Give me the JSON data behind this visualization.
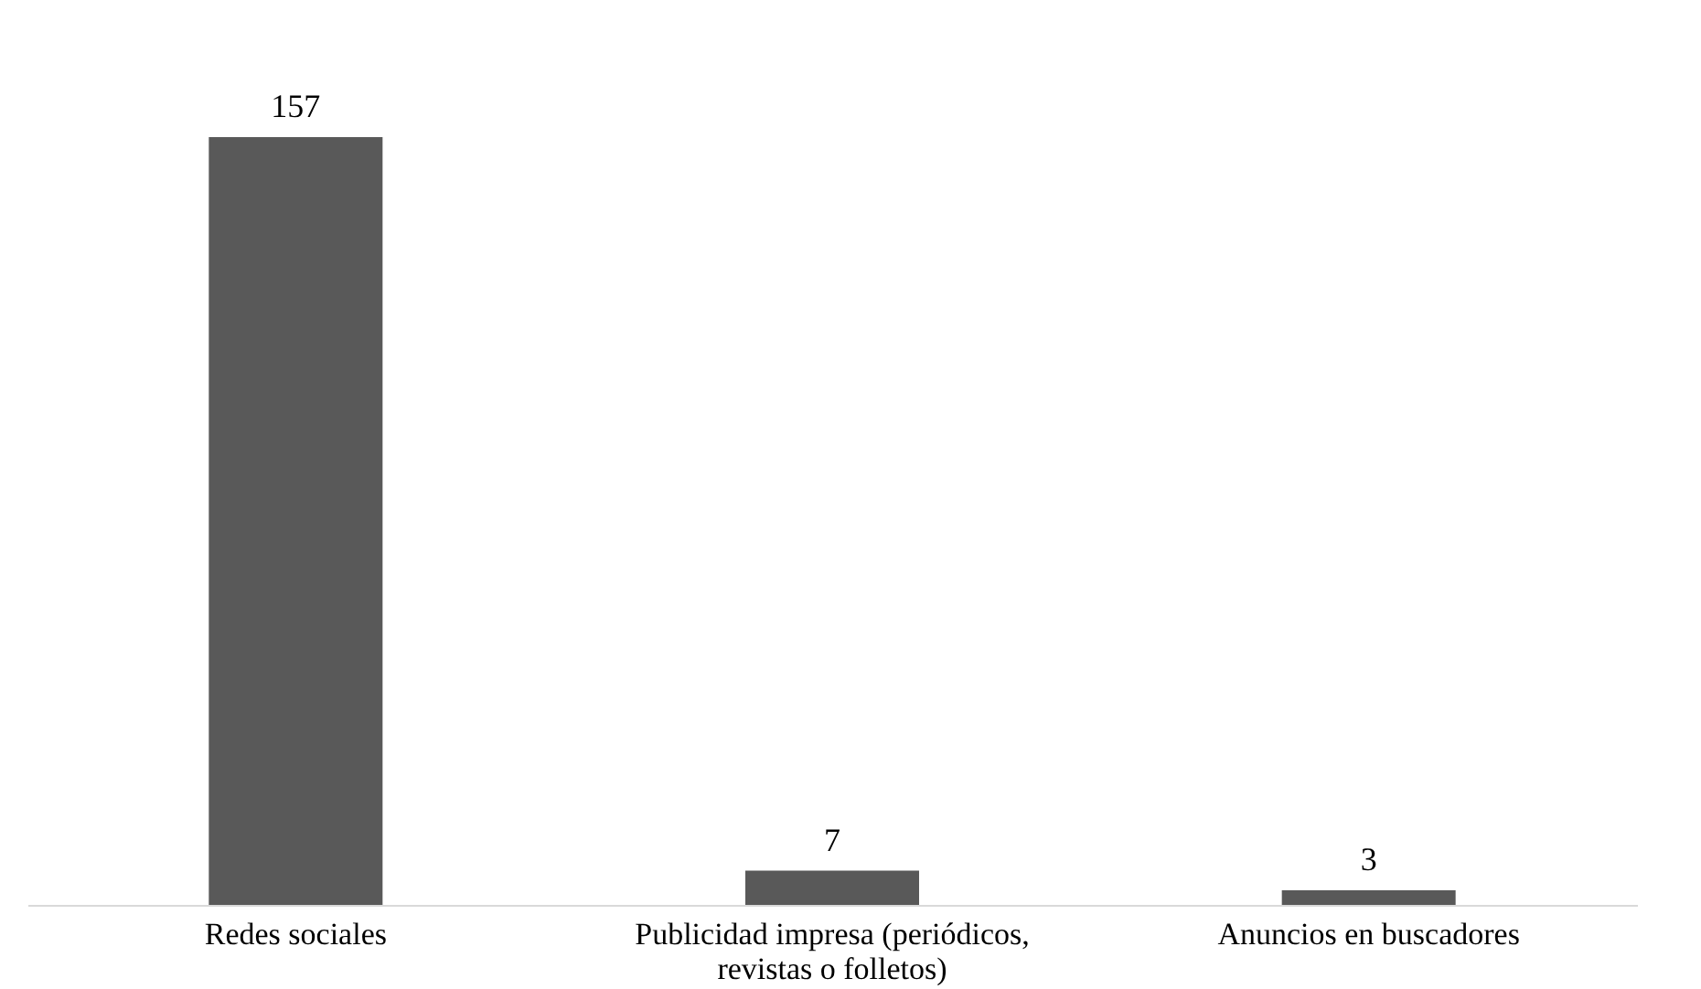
{
  "chart_data": {
    "type": "bar",
    "categories": [
      "Redes sociales",
      "Publicidad impresa (periódicos, revistas o folletos)",
      "Anuncios en buscadores"
    ],
    "values": [
      157,
      7,
      3
    ],
    "color": "#595959",
    "data_labels": true,
    "grid": false
  }
}
